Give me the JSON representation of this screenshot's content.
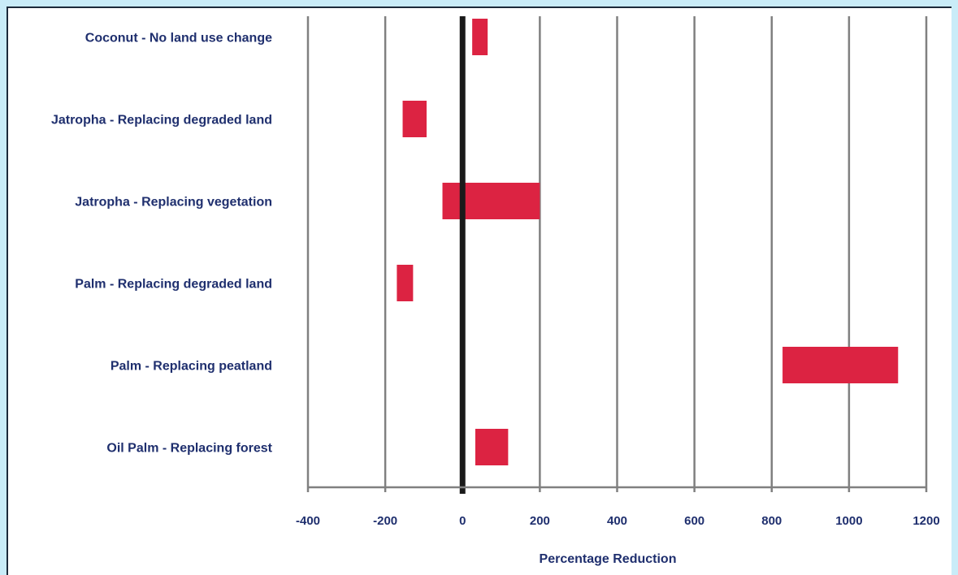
{
  "chart_data": {
    "type": "bar",
    "orientation": "horizontal",
    "style": "floating-range",
    "categories": [
      "Coconut - No land use change",
      "Jatropha - Replacing degraded land",
      "Jatropha - Replacing vegetation",
      "Palm - Replacing degraded land",
      "Palm - Replacing peatland",
      "Oil Palm - Replacing forest"
    ],
    "ranges": [
      [
        25,
        65
      ],
      [
        -155,
        -93
      ],
      [
        -52,
        200
      ],
      [
        -170,
        -128
      ],
      [
        828,
        1127
      ],
      [
        33,
        118
      ]
    ],
    "xlabel": "Percentage Reduction",
    "xlim": [
      -400,
      1200
    ],
    "xticks": [
      -400,
      -200,
      0,
      200,
      400,
      600,
      800,
      1000,
      1200
    ],
    "xtick_labels": [
      "-400",
      "-200",
      "0",
      "200",
      "400",
      "600",
      "800",
      "1000",
      "1200"
    ],
    "grid": true,
    "legend": "none",
    "colors": {
      "bar": "#dc2342",
      "grid": "#808080",
      "zero_line": "#1a1a1a",
      "text": "#1f2f6e",
      "background": "#c9ecf8"
    }
  }
}
